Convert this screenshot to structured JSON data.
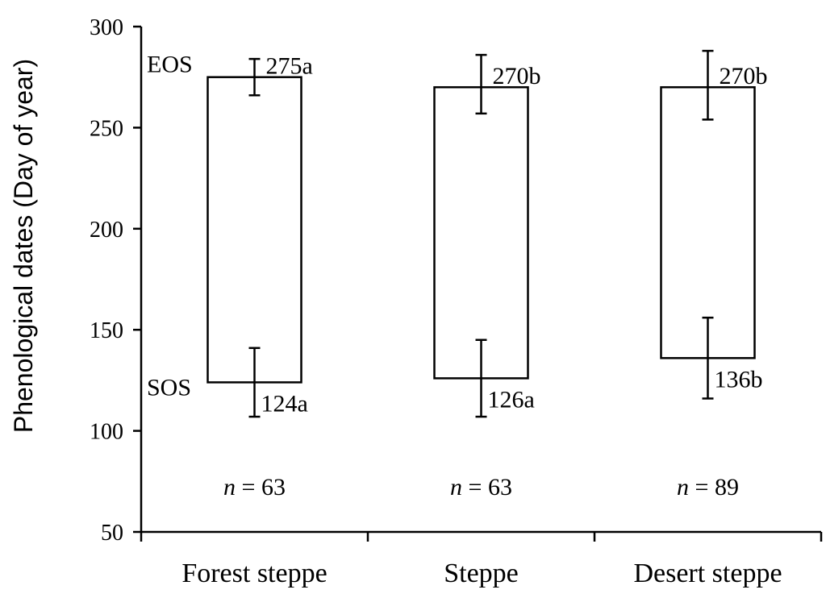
{
  "chart_data": {
    "type": "bar",
    "ylabel": "Phenological dates (Day of year)",
    "xlabel": "",
    "ylim": [
      50,
      300
    ],
    "yticks": [
      50,
      100,
      150,
      200,
      250,
      300
    ],
    "categories": [
      "Forest steppe",
      "Steppe",
      "Desert steppe"
    ],
    "phase_labels": {
      "eos": "EOS",
      "sos": "SOS"
    },
    "series": [
      {
        "category": "Forest steppe",
        "eos": 275,
        "eos_err_low": 266,
        "eos_err_high": 284,
        "eos_label": "275a",
        "sos": 124,
        "sos_err_low": 107,
        "sos_err_high": 141,
        "sos_label": "124a",
        "n_italic": "n",
        "n_value": "= 63"
      },
      {
        "category": "Steppe",
        "eos": 270,
        "eos_err_low": 257,
        "eos_err_high": 286,
        "eos_label": "270b",
        "sos": 126,
        "sos_err_low": 107,
        "sos_err_high": 145,
        "sos_label": "126a",
        "n_italic": "n",
        "n_value": "= 63"
      },
      {
        "category": "Desert steppe",
        "eos": 270,
        "eos_err_low": 254,
        "eos_err_high": 288,
        "eos_label": "270b",
        "sos": 136,
        "sos_err_low": 116,
        "sos_err_high": 156,
        "sos_label": "136b",
        "n_italic": "n",
        "n_value": "= 89"
      }
    ],
    "colors": {
      "stroke": "#000000",
      "fill": "#ffffff"
    },
    "grid": false,
    "legend": "none"
  }
}
